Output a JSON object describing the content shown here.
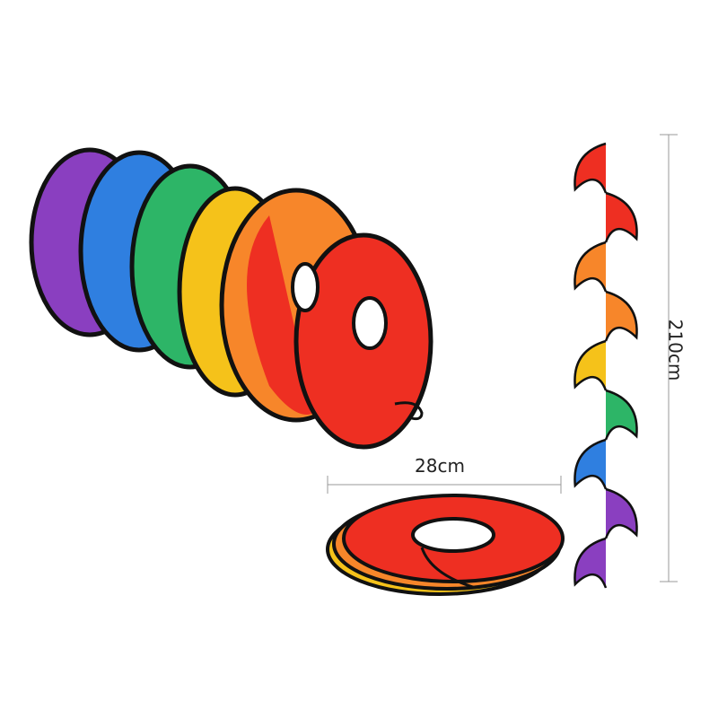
{
  "dimensions": {
    "width_label": "28cm",
    "height_label": "210cm"
  },
  "colors": {
    "purple": "#8a3fc0",
    "blue": "#2f7fe0",
    "green": "#2db567",
    "yellow": "#f5c21a",
    "orange": "#f7862a",
    "red": "#ee2f22",
    "border": "#111111"
  }
}
